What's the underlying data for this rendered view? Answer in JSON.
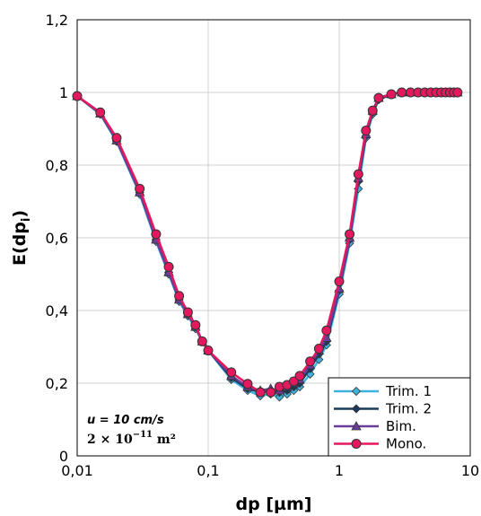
{
  "chart_data": {
    "type": "line",
    "x_scale": "log",
    "xlabel": "dp [µm]",
    "ylabel": "E(dp",
    "ylabel_sub": "i",
    "ylabel_close": ")",
    "xlim": [
      0.01,
      10
    ],
    "ylim": [
      0,
      1.2
    ],
    "x_ticks": [
      {
        "value": 0.01,
        "label": "0,01"
      },
      {
        "value": 0.1,
        "label": "0,1"
      },
      {
        "value": 1,
        "label": "1"
      },
      {
        "value": 10,
        "label": "10"
      }
    ],
    "y_ticks": [
      {
        "value": 0,
        "label": "0"
      },
      {
        "value": 0.2,
        "label": "0,2"
      },
      {
        "value": 0.4,
        "label": "0,4"
      },
      {
        "value": 0.6,
        "label": "0,6"
      },
      {
        "value": 0.8,
        "label": "0,8"
      },
      {
        "value": 1,
        "label": "1"
      },
      {
        "value": 1.2,
        "label": "1,2"
      }
    ],
    "grid": true,
    "legend_position": "bottom-right",
    "annotations": {
      "line1": "u = 10 cm/s",
      "line2_base": "2 × 10",
      "line2_exp": "−11",
      "line2_unit": " m²"
    },
    "series": [
      {
        "name": "Trim. 1",
        "color": "#3fb3e0",
        "marker": "diamond",
        "x": [
          0.01,
          0.015,
          0.02,
          0.03,
          0.04,
          0.05,
          0.06,
          0.07,
          0.08,
          0.09,
          0.1,
          0.15,
          0.2,
          0.25,
          0.3,
          0.35,
          0.4,
          0.45,
          0.5,
          0.6,
          0.7,
          0.8,
          1.0,
          1.2,
          1.4,
          1.6,
          1.8,
          2.0,
          2.5,
          3,
          3.5,
          4,
          4.5,
          5,
          5.5,
          6,
          6.5,
          7,
          7.5,
          8
        ],
        "y": [
          0.99,
          0.94,
          0.865,
          0.72,
          0.59,
          0.5,
          0.425,
          0.385,
          0.35,
          0.315,
          0.29,
          0.21,
          0.18,
          0.165,
          0.17,
          0.162,
          0.17,
          0.18,
          0.19,
          0.225,
          0.265,
          0.305,
          0.445,
          0.585,
          0.735,
          0.875,
          0.94,
          0.98,
          0.995,
          1,
          1,
          1,
          1,
          1,
          1,
          1,
          1,
          1,
          1,
          1
        ]
      },
      {
        "name": "Trim. 2",
        "color": "#1b3a5c",
        "marker": "diamond",
        "x": [
          0.01,
          0.015,
          0.02,
          0.03,
          0.04,
          0.05,
          0.06,
          0.07,
          0.08,
          0.09,
          0.1,
          0.15,
          0.2,
          0.25,
          0.3,
          0.35,
          0.4,
          0.45,
          0.5,
          0.6,
          0.7,
          0.8,
          1.0,
          1.2,
          1.4,
          1.6,
          1.8,
          2.0,
          2.5,
          3,
          3.5,
          4,
          4.5,
          5,
          5.5,
          6,
          6.5,
          7,
          7.5,
          8
        ],
        "y": [
          0.99,
          0.942,
          0.868,
          0.725,
          0.595,
          0.505,
          0.43,
          0.39,
          0.355,
          0.315,
          0.29,
          0.215,
          0.185,
          0.175,
          0.18,
          0.175,
          0.18,
          0.19,
          0.2,
          0.24,
          0.28,
          0.315,
          0.455,
          0.595,
          0.755,
          0.88,
          0.945,
          0.98,
          0.995,
          1,
          1,
          1,
          1,
          1,
          1,
          1,
          1,
          1,
          1,
          1
        ]
      },
      {
        "name": "Bim.",
        "color": "#6a3d9a",
        "marker": "triangle",
        "x": [
          0.01,
          0.015,
          0.02,
          0.03,
          0.04,
          0.05,
          0.06,
          0.07,
          0.08,
          0.09,
          0.1,
          0.15,
          0.2,
          0.25,
          0.3,
          0.35,
          0.4,
          0.45,
          0.5,
          0.6,
          0.7,
          0.8,
          1.0,
          1.2,
          1.4,
          1.6,
          1.8,
          2.0,
          2.5,
          3,
          3.5,
          4,
          4.5,
          5,
          5.5,
          6,
          6.5,
          7,
          7.5,
          8
        ],
        "y": [
          0.99,
          0.942,
          0.868,
          0.725,
          0.595,
          0.505,
          0.43,
          0.39,
          0.355,
          0.315,
          0.29,
          0.22,
          0.19,
          0.18,
          0.185,
          0.18,
          0.19,
          0.2,
          0.21,
          0.25,
          0.29,
          0.325,
          0.46,
          0.6,
          0.765,
          0.885,
          0.95,
          0.985,
          0.995,
          1,
          1,
          1,
          1,
          1,
          1,
          1,
          1,
          1,
          1,
          1
        ]
      },
      {
        "name": "Mono.",
        "color": "#e3185e",
        "marker": "circle",
        "x": [
          0.01,
          0.015,
          0.02,
          0.03,
          0.04,
          0.05,
          0.06,
          0.07,
          0.08,
          0.09,
          0.1,
          0.15,
          0.2,
          0.25,
          0.3,
          0.35,
          0.4,
          0.45,
          0.5,
          0.6,
          0.7,
          0.8,
          1.0,
          1.2,
          1.4,
          1.6,
          1.8,
          2.0,
          2.5,
          3,
          3.5,
          4,
          4.5,
          5,
          5.5,
          6,
          6.5,
          7,
          7.5,
          8
        ],
        "y": [
          0.99,
          0.945,
          0.875,
          0.735,
          0.61,
          0.52,
          0.44,
          0.395,
          0.36,
          0.315,
          0.29,
          0.23,
          0.198,
          0.175,
          0.175,
          0.19,
          0.195,
          0.205,
          0.22,
          0.26,
          0.295,
          0.345,
          0.48,
          0.61,
          0.775,
          0.895,
          0.95,
          0.985,
          0.995,
          1,
          1,
          1,
          1,
          1,
          1,
          1,
          1,
          1,
          1,
          1
        ]
      }
    ]
  }
}
